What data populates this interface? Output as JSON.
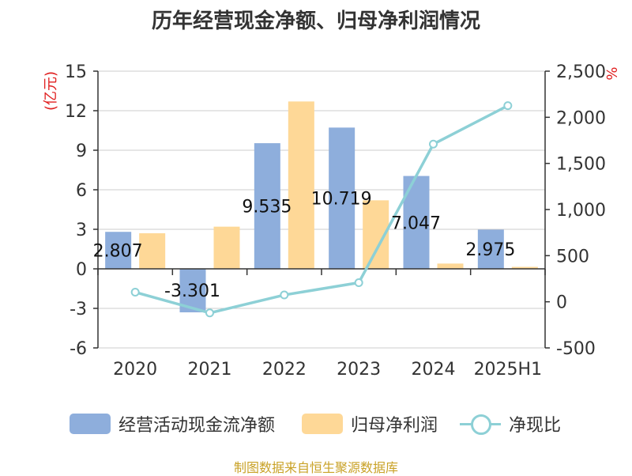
{
  "chart_data": {
    "type": "bar",
    "title": "历年经营现金净额、归母净利润情况",
    "categories": [
      "2020",
      "2021",
      "2022",
      "2023",
      "2024",
      "2025H1"
    ],
    "y_left": {
      "unit_label": "(亿元)",
      "ylim": [
        -6,
        15
      ],
      "ticks": [
        "15",
        "12",
        "9",
        "6",
        "3",
        "0",
        "-3",
        "-6"
      ],
      "tick_values": [
        15,
        12,
        9,
        6,
        3,
        0,
        -3,
        -6
      ]
    },
    "y_right": {
      "unit_label": "%",
      "ylim": [
        -500,
        2500
      ],
      "ticks": [
        "2,500",
        "2,000",
        "1,500",
        "1,000",
        "500",
        "0",
        "-500"
      ],
      "tick_values": [
        2500,
        2000,
        1500,
        1000,
        500,
        0,
        -500
      ]
    },
    "series": [
      {
        "name": "经营活动现金流净额",
        "type": "bar",
        "axis": "left",
        "color": "#8eaedc",
        "values": [
          2.807,
          -3.301,
          9.535,
          10.719,
          7.047,
          2.975
        ],
        "labels": [
          "2.807",
          "-3.301",
          "9.535",
          "10.719",
          "7.047",
          "2.975"
        ]
      },
      {
        "name": "归母净利润",
        "type": "bar",
        "axis": "left",
        "color": "#fed897",
        "values": [
          2.7,
          3.2,
          12.7,
          5.2,
          0.4,
          0.15
        ]
      },
      {
        "name": "净现比",
        "type": "line",
        "axis": "right",
        "color": "#8dd0d6",
        "values": [
          104,
          -121,
          74,
          207,
          1709,
          2126
        ]
      }
    ],
    "grid": true,
    "legend_position": "bottom",
    "source": "制图数据来自恒生聚源数据库"
  }
}
